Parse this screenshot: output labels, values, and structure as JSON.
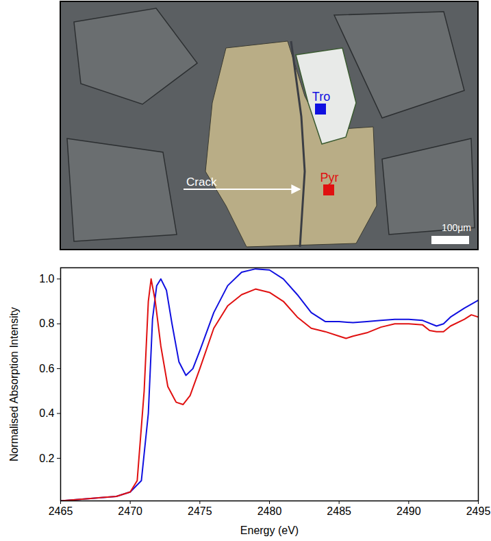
{
  "chart_data": {
    "type": "line",
    "x_label": "Energy (eV)",
    "y_label": "Normalised Absorption Intensity",
    "xlim": [
      2465,
      2495
    ],
    "xticks": [
      2465,
      2470,
      2475,
      2480,
      2485,
      2490,
      2495
    ],
    "ylim": [
      0.01,
      1.05
    ],
    "yticks": [
      0.2,
      0.4,
      0.6,
      0.8,
      {
        "value": 1,
        "label": "1.0"
      }
    ],
    "grid": false,
    "series": [
      {
        "name": "Tro",
        "color": "#1010e0",
        "x": [
          2465,
          2467,
          2469,
          2470,
          2470.8,
          2471.3,
          2471.6,
          2471.9,
          2472.2,
          2472.6,
          2473,
          2473.5,
          2474,
          2474.5,
          2475,
          2476,
          2477,
          2478,
          2479,
          2480,
          2481,
          2482,
          2483,
          2484,
          2485,
          2486,
          2487,
          2488,
          2489,
          2490,
          2491,
          2492,
          2492.5,
          2493,
          2494,
          2495
        ],
        "values": [
          0.01,
          0.02,
          0.03,
          0.05,
          0.1,
          0.4,
          0.82,
          0.97,
          1.0,
          0.95,
          0.8,
          0.63,
          0.57,
          0.6,
          0.68,
          0.85,
          0.97,
          1.03,
          1.045,
          1.04,
          1.0,
          0.93,
          0.85,
          0.81,
          0.81,
          0.805,
          0.81,
          0.815,
          0.82,
          0.82,
          0.815,
          0.79,
          0.8,
          0.83,
          0.87,
          0.905
        ]
      },
      {
        "name": "Pyr",
        "color": "#e01010",
        "x": [
          2465,
          2467,
          2468,
          2469,
          2470,
          2470.5,
          2471,
          2471.3,
          2471.5,
          2471.8,
          2472.2,
          2472.7,
          2473.3,
          2473.8,
          2474.3,
          2475,
          2476,
          2477,
          2478,
          2479,
          2480,
          2481,
          2482,
          2483,
          2484,
          2485,
          2485.5,
          2486,
          2487,
          2488,
          2489,
          2490,
          2491,
          2491.5,
          2492,
          2492.5,
          2493,
          2494,
          2494.5,
          2495
        ],
        "values": [
          0.01,
          0.02,
          0.025,
          0.03,
          0.05,
          0.1,
          0.5,
          0.9,
          1.0,
          0.9,
          0.7,
          0.52,
          0.45,
          0.44,
          0.48,
          0.6,
          0.78,
          0.88,
          0.93,
          0.955,
          0.94,
          0.9,
          0.83,
          0.78,
          0.765,
          0.745,
          0.735,
          0.745,
          0.76,
          0.785,
          0.8,
          0.8,
          0.795,
          0.77,
          0.765,
          0.765,
          0.79,
          0.82,
          0.84,
          0.83
        ]
      }
    ]
  },
  "micrograph": {
    "crack_label": "Crack",
    "scale_bar": "100μm"
  }
}
